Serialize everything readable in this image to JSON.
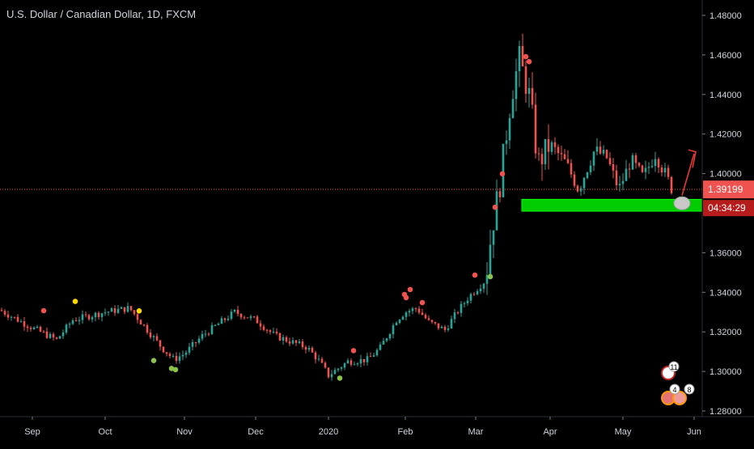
{
  "chart_data": {
    "type": "candlestick",
    "title": "U.S. Dollar / Canadian Dollar, 1D, FXCM",
    "x_tick_labels": [
      "Sep",
      "Oct",
      "Nov",
      "Dec",
      "2020",
      "Feb",
      "Mar",
      "Apr",
      "May",
      "Jun"
    ],
    "y_tick_labels": [
      "1.48000",
      "1.46000",
      "1.44000",
      "1.42000",
      "1.40000",
      "1.36000",
      "1.34000",
      "1.32000",
      "1.30000",
      "1.28000"
    ],
    "ylim": [
      1.28,
      1.48
    ],
    "current_price": "1.39199",
    "countdown": "04:34:29",
    "support_zone": [
      1.381,
      1.387
    ],
    "colors": {
      "up": "#26a69a",
      "down": "#ef5350",
      "background": "#000000",
      "support": "#00cc00",
      "price_line": "#ef5350",
      "arrow": "#e53935",
      "dot_sell": "#ef5350",
      "dot_buy": "#8bc34a",
      "dot_neutral": "#ffd600"
    },
    "ohlc_path_close": [
      [
        "Sep",
        1.331
      ],
      [
        "Sep",
        1.322
      ],
      [
        "Sep",
        1.316
      ],
      [
        "Sep",
        1.324
      ],
      [
        "Oct",
        1.33
      ],
      [
        "Oct",
        1.333
      ],
      [
        "Oct",
        1.325
      ],
      [
        "Oct",
        1.318
      ],
      [
        "Oct",
        1.321
      ],
      [
        "Nov",
        1.307
      ],
      [
        "Nov",
        1.312
      ],
      [
        "Nov",
        1.32
      ],
      [
        "Nov",
        1.326
      ],
      [
        "Nov",
        1.33
      ],
      [
        "Dec",
        1.328
      ],
      [
        "Dec",
        1.322
      ],
      [
        "Dec",
        1.318
      ],
      [
        "Dec",
        1.315
      ],
      [
        "Dec",
        1.31
      ],
      [
        "2020",
        1.298
      ],
      [
        "2020",
        1.305
      ],
      [
        "2020",
        1.308
      ],
      [
        "2020",
        1.306
      ],
      [
        "2020",
        1.312
      ],
      [
        "Feb",
        1.33
      ],
      [
        "Feb",
        1.332
      ],
      [
        "Feb",
        1.325
      ],
      [
        "Feb",
        1.321
      ],
      [
        "Mar",
        1.33
      ],
      [
        "Mar",
        1.34
      ],
      [
        "Mar",
        1.372
      ],
      [
        "Mar",
        1.395
      ],
      [
        "Mar",
        1.44
      ],
      [
        "Mar",
        1.455
      ],
      [
        "Apr",
        1.415
      ],
      [
        "Apr",
        1.405
      ],
      [
        "Apr",
        1.395
      ],
      [
        "Apr",
        1.408
      ],
      [
        "May",
        1.412
      ],
      [
        "May",
        1.398
      ],
      [
        "May",
        1.405
      ],
      [
        "May",
        1.392
      ]
    ],
    "signal_markers": [
      {
        "type": "sell",
        "price": 1.3307
      },
      {
        "type": "neutral",
        "price": 1.3354
      },
      {
        "type": "neutral",
        "price": 1.3306
      },
      {
        "type": "buy",
        "price": 1.3055
      },
      {
        "type": "buy",
        "price": 1.3015
      },
      {
        "type": "buy",
        "price": 1.3009
      },
      {
        "type": "sell",
        "price": 1.3105
      },
      {
        "type": "buy",
        "price": 1.2966
      },
      {
        "type": "sell",
        "price": 1.3373
      },
      {
        "type": "sell",
        "price": 1.3414
      },
      {
        "type": "sell",
        "price": 1.3389
      },
      {
        "type": "sell",
        "price": 1.3348
      },
      {
        "type": "sell",
        "price": 1.3487
      },
      {
        "type": "buy",
        "price": 1.3479
      },
      {
        "type": "sell",
        "price": 1.383
      },
      {
        "type": "sell",
        "price": 1.3999
      },
      {
        "type": "sell",
        "price": 1.4591
      },
      {
        "type": "sell",
        "price": 1.4566
      }
    ],
    "badges": {
      "first": "11",
      "second": "4",
      "third": "8"
    }
  }
}
